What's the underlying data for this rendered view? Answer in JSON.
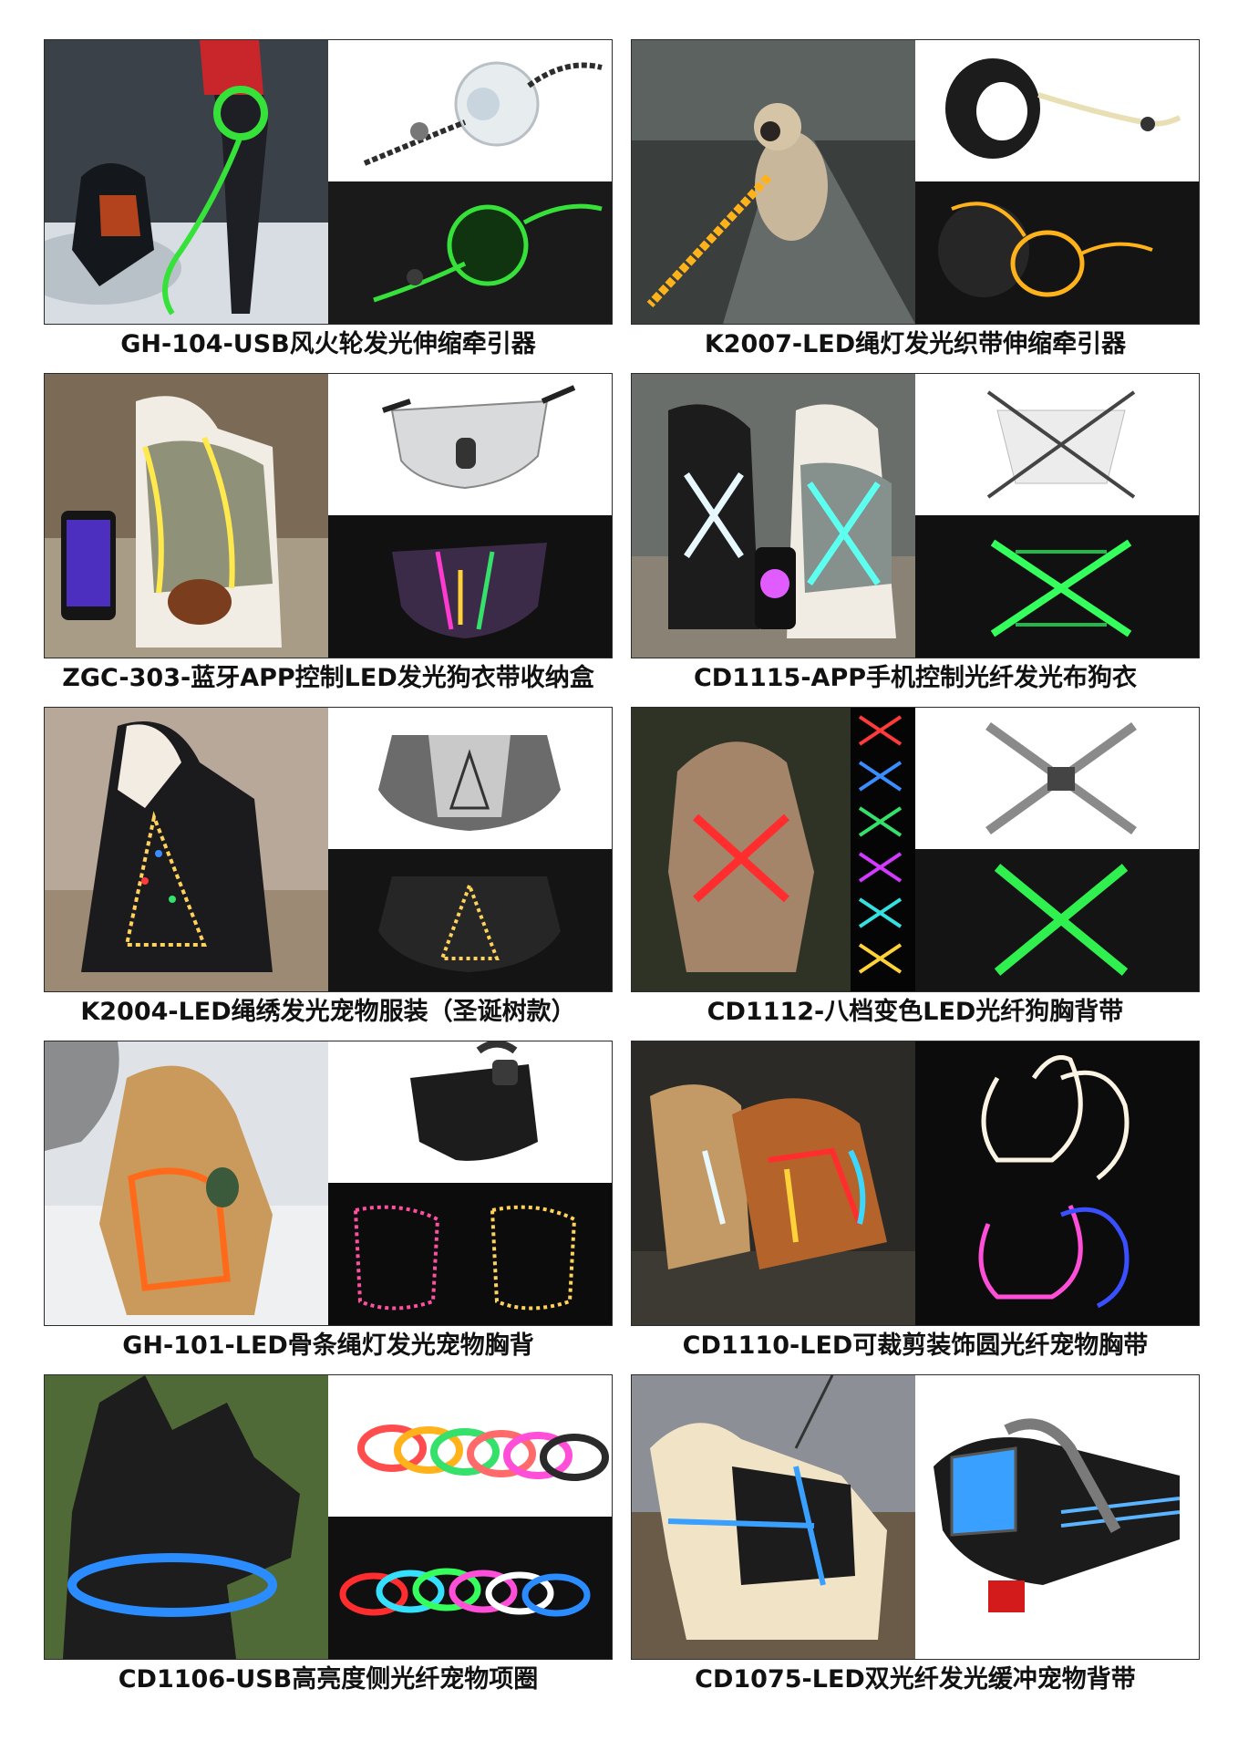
{
  "products": [
    {
      "caption": "GH-104-USB风火轮发光伸缩牵引器",
      "scene": "dog walked at night with green LED retractable leash",
      "glow": "#36e23a"
    },
    {
      "caption": "K2007-LED绳灯发光织带伸缩牵引器",
      "scene": "pug on path with orange LED leash",
      "glow": "#ffb21a"
    },
    {
      "caption": "ZGC-303-蓝牙APP控制LED发光狗衣带收纳盒",
      "scene": "dog wearing app-controlled LED vest",
      "glow": "#ff3ad0"
    },
    {
      "caption": "CD1115-APP手机控制光纤发光布狗衣",
      "scene": "dogs wearing fiber optic vests",
      "glow": "#35ff5c"
    },
    {
      "caption": "K2004-LED绳绣发光宠物服装（圣诞树款）",
      "scene": "dog wearing Christmas tree LED coat",
      "glow": "#ffd35a"
    },
    {
      "caption": "CD1112-八档变色LED光纤狗胸背带",
      "scene": "fluffy dog with red fiber optic harness",
      "glow": "#30f050"
    },
    {
      "caption": "GH-101-LED骨条绳灯发光宠物胸背",
      "scene": "dog in snow wearing orange LED harness",
      "glow": "#ff6a1a"
    },
    {
      "caption": "CD1110-LED可裁剪装饰圆光纤宠物胸带",
      "scene": "two dogs running with glowing harnesses",
      "glow": "#ff4fd8"
    },
    {
      "caption": "CD1106-USB高亮度侧光纤宠物项圈",
      "scene": "black dog with blue LED collar",
      "glow": "#2a8cff"
    },
    {
      "caption": "CD1075-LED双光纤发光缓冲宠物背带",
      "scene": "labrador on dock with blue fiber harness",
      "glow": "#3aa0ff"
    }
  ],
  "colors": {
    "border": "#2b2b2b",
    "caption": "#111111",
    "background": "#ffffff"
  }
}
